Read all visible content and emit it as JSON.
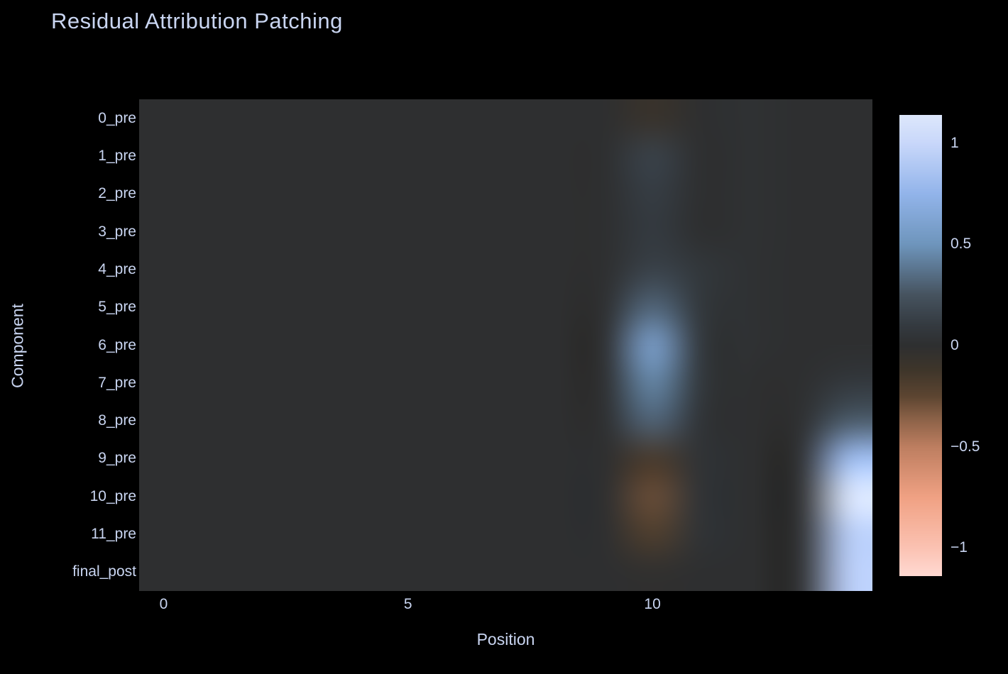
{
  "page": {
    "background_color": "#000000",
    "text_color": "#c9d5f1"
  },
  "chart_data": {
    "type": "heatmap",
    "title": "Residual Attribution Patching",
    "xlabel": "Position",
    "ylabel": "Component",
    "y_categories": [
      "0_pre",
      "1_pre",
      "2_pre",
      "3_pre",
      "4_pre",
      "5_pre",
      "6_pre",
      "7_pre",
      "8_pre",
      "9_pre",
      "10_pre",
      "11_pre",
      "final_post"
    ],
    "n_cols": 15,
    "x_tick_values": [
      0,
      5,
      10
    ],
    "x_tick_labels": [
      "0",
      "5",
      "10"
    ],
    "zmin": -1.14,
    "zmax": 1.14,
    "smoothing": "best",
    "grid": false,
    "legend_position": "right-colorbar",
    "colorbar_tick_values": [
      1,
      0.5,
      0,
      -0.5,
      -1
    ],
    "colorbar_tick_labels": [
      "1",
      "0.5",
      "0",
      "−0.5",
      "−1"
    ],
    "colorscale": [
      [
        -1.14,
        "#ffd9d2"
      ],
      [
        -1.0,
        "#fbc2b2"
      ],
      [
        -0.75,
        "#f0a183"
      ],
      [
        -0.5,
        "#bd7e60"
      ],
      [
        -0.36,
        "#8a6147"
      ],
      [
        -0.25,
        "#5c4531"
      ],
      [
        -0.12,
        "#3e352a"
      ],
      [
        0.0,
        "#2e2f30"
      ],
      [
        0.1,
        "#343a40"
      ],
      [
        0.25,
        "#46535f"
      ],
      [
        0.5,
        "#6e95bc"
      ],
      [
        0.75,
        "#92b4ea"
      ],
      [
        1.0,
        "#c8d7fa"
      ],
      [
        1.14,
        "#dde7fb"
      ]
    ],
    "z": [
      [
        0,
        0,
        0,
        0,
        0,
        0,
        0,
        0,
        0,
        0,
        -0.08,
        0,
        0.02,
        0,
        0
      ],
      [
        0,
        0,
        0,
        0,
        0,
        0,
        0,
        0,
        0,
        0,
        0.15,
        0,
        0.02,
        0,
        0
      ],
      [
        0,
        0,
        0,
        0,
        0,
        0,
        0,
        0,
        0,
        0,
        0.12,
        0,
        0.02,
        0,
        0
      ],
      [
        0,
        0,
        0,
        0,
        0,
        0,
        0,
        0,
        0,
        0,
        0.1,
        0,
        0.02,
        0,
        0
      ],
      [
        0,
        0,
        0,
        0,
        0,
        0,
        0,
        0,
        0,
        0,
        0.15,
        0.07,
        0.02,
        0,
        0
      ],
      [
        0,
        0,
        0,
        0,
        0,
        0,
        0,
        0,
        0,
        0,
        0.33,
        0.07,
        0.02,
        0,
        0
      ],
      [
        0,
        0,
        0,
        0,
        0,
        0,
        0,
        0,
        0,
        0,
        0.6,
        0.07,
        0.02,
        0,
        0
      ],
      [
        0,
        0,
        0,
        0,
        0,
        0,
        0,
        0,
        0,
        0,
        0.45,
        0.07,
        0,
        0,
        0.08
      ],
      [
        0,
        0,
        0,
        0,
        0,
        0,
        0,
        0,
        0,
        0,
        0.32,
        0.04,
        0,
        0,
        0.28
      ],
      [
        0,
        0,
        0,
        0,
        0,
        0,
        0,
        0,
        0,
        0,
        -0.17,
        0.04,
        0,
        0,
        0.8
      ],
      [
        0,
        0,
        0,
        0,
        0,
        0,
        0,
        0,
        0,
        0,
        -0.28,
        0.04,
        0,
        0,
        1.12
      ],
      [
        0,
        0,
        0,
        0,
        0,
        0,
        0,
        0,
        0,
        0,
        -0.2,
        0.04,
        0,
        0,
        0.92
      ],
      [
        0,
        0,
        0,
        0,
        0,
        0,
        0,
        0,
        0,
        0,
        -0.02,
        0,
        0,
        0,
        0.93
      ]
    ]
  }
}
